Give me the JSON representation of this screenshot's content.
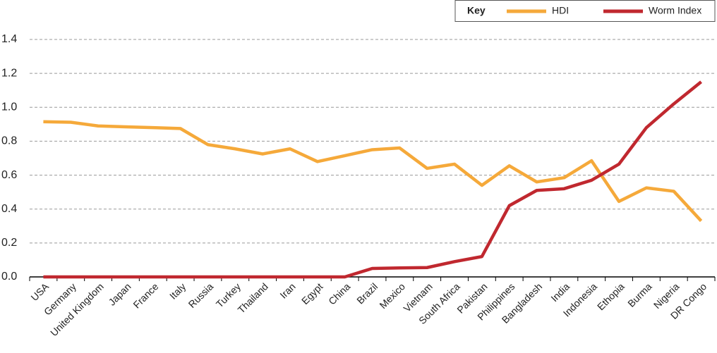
{
  "chart_data": {
    "type": "line",
    "legend_title": "Key",
    "legend_position": "top-right",
    "categories": [
      "USA",
      "Germany",
      "United Kingdom",
      "Japan",
      "France",
      "Italy",
      "Russia",
      "Turkey",
      "Thailand",
      "Iran",
      "Egypt",
      "China",
      "Brazil",
      "Mexico",
      "Vietnam",
      "South Africa",
      "Pakistan",
      "Philippines",
      "Bangladesh",
      "India",
      "Indonesia",
      "Ethopia",
      "Burma",
      "Nigeria",
      "DR Congo"
    ],
    "series": [
      {
        "name": "HDI",
        "color": "#f5a93a",
        "values": [
          0.915,
          0.912,
          0.89,
          0.885,
          0.88,
          0.875,
          0.78,
          0.755,
          0.725,
          0.755,
          0.68,
          0.715,
          0.75,
          0.76,
          0.64,
          0.665,
          0.54,
          0.655,
          0.56,
          0.585,
          0.685,
          0.445,
          0.525,
          0.505,
          0.33
        ]
      },
      {
        "name": "Worm Index",
        "color": "#c0282f",
        "values": [
          0,
          0,
          0,
          0,
          0,
          0,
          0,
          0,
          0,
          0,
          0,
          0,
          0.05,
          0.053,
          0.055,
          0.09,
          0.12,
          0.42,
          0.51,
          0.52,
          0.57,
          0.665,
          0.88,
          1.02,
          1.15
        ]
      }
    ],
    "ylim": [
      0,
      1.4
    ],
    "yticks": [
      {
        "value": 0,
        "label": "0.0"
      },
      0.2,
      0.4,
      0.6,
      0.8,
      {
        "value": 1,
        "label": "1.0"
      },
      1.2,
      1.4
    ],
    "grid": true
  }
}
